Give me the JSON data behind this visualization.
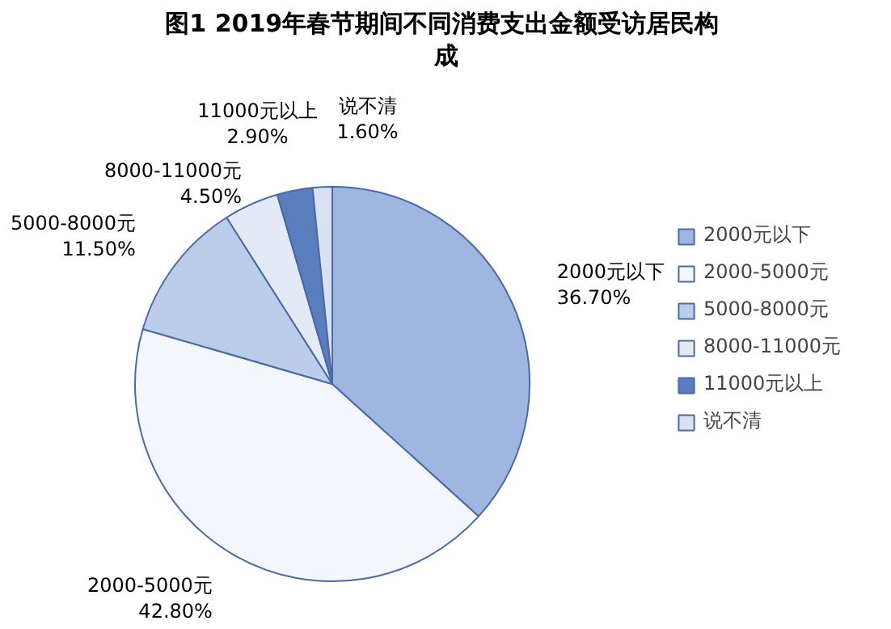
{
  "chart_data": {
    "type": "pie",
    "title": "图1  2019年春节期间不同消费支出金额受访居民构成",
    "categories": [
      "2000元以下",
      "2000-5000元",
      "5000-8000元",
      "8000-11000元",
      "11000元以上",
      "说不清"
    ],
    "values": [
      36.7,
      42.8,
      11.5,
      4.5,
      2.9,
      1.6
    ],
    "value_labels": [
      "36.70%",
      "42.80%",
      "11.50%",
      "4.50%",
      "2.90%",
      "1.60%"
    ],
    "colors": [
      "#9fb6e0",
      "#f3f6fb",
      "#bccdea",
      "#e4eaf5",
      "#5a7dbd",
      "#d9e2f2"
    ],
    "legend": "right"
  }
}
